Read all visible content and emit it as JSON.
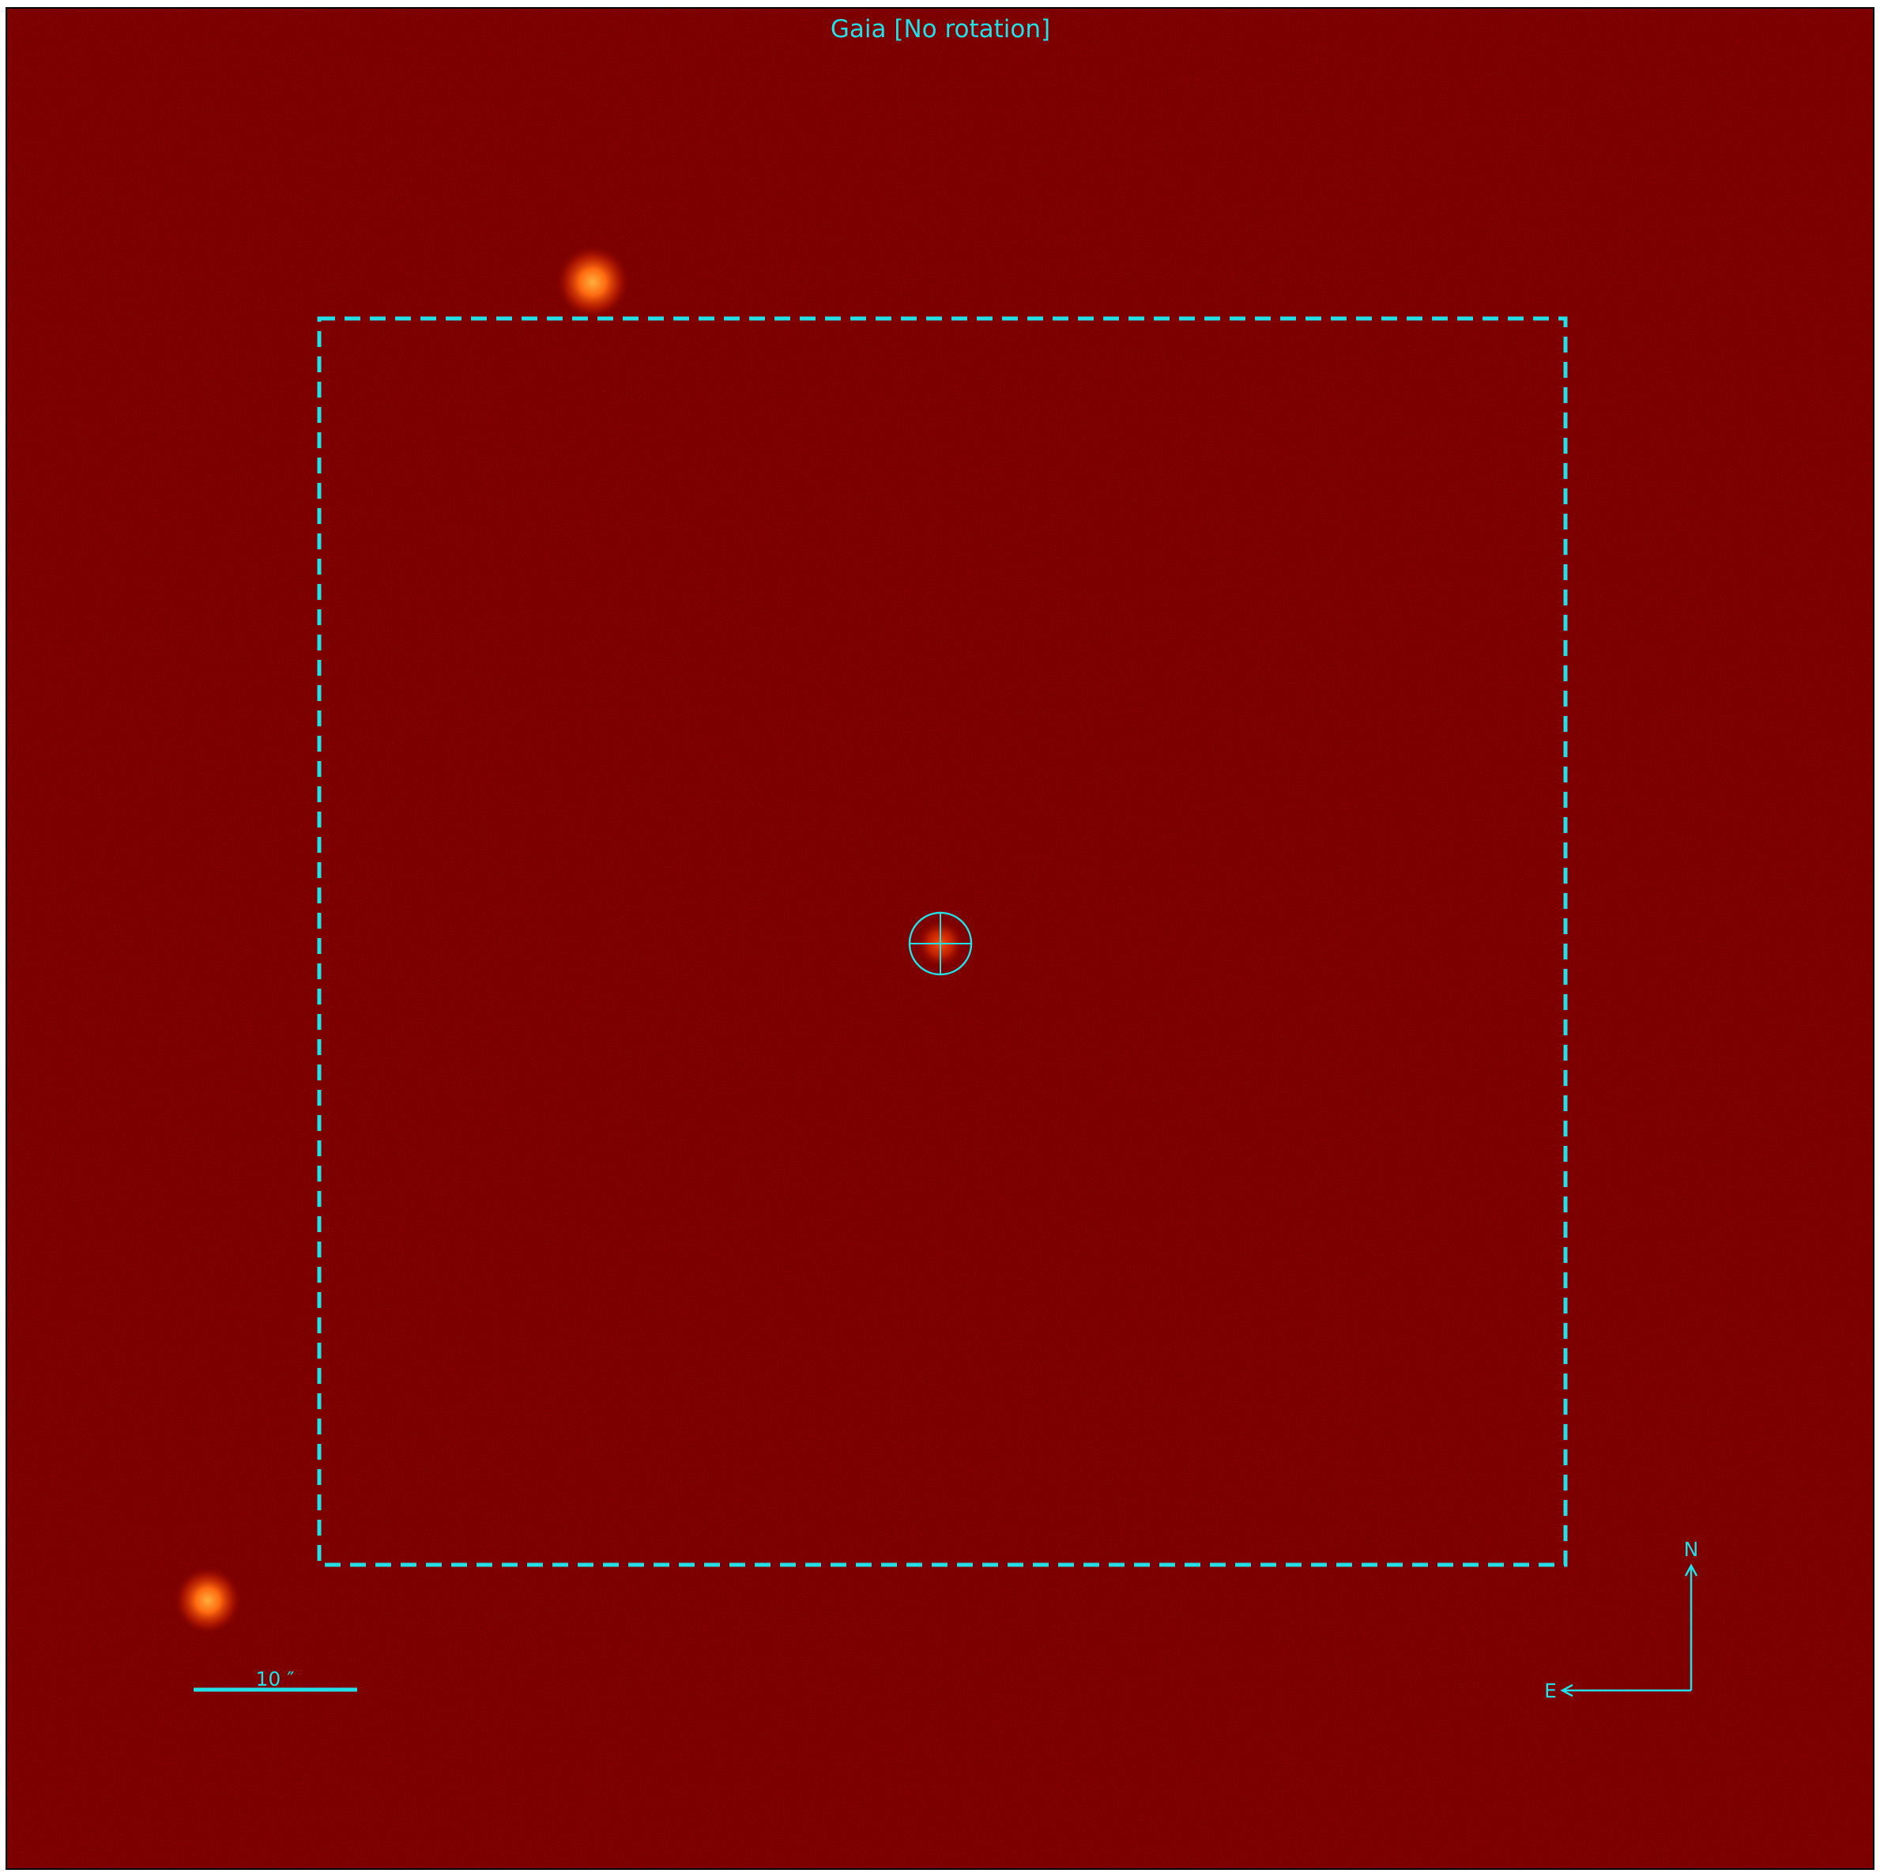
{
  "title": "Gaia [No rotation]",
  "scalebar": {
    "label": "10 ″"
  },
  "compass": {
    "north": "N",
    "east": "E"
  },
  "colors": {
    "overlay": "#22e0e6",
    "background": "#7a0000",
    "star_core": "#ff8a1a"
  }
}
